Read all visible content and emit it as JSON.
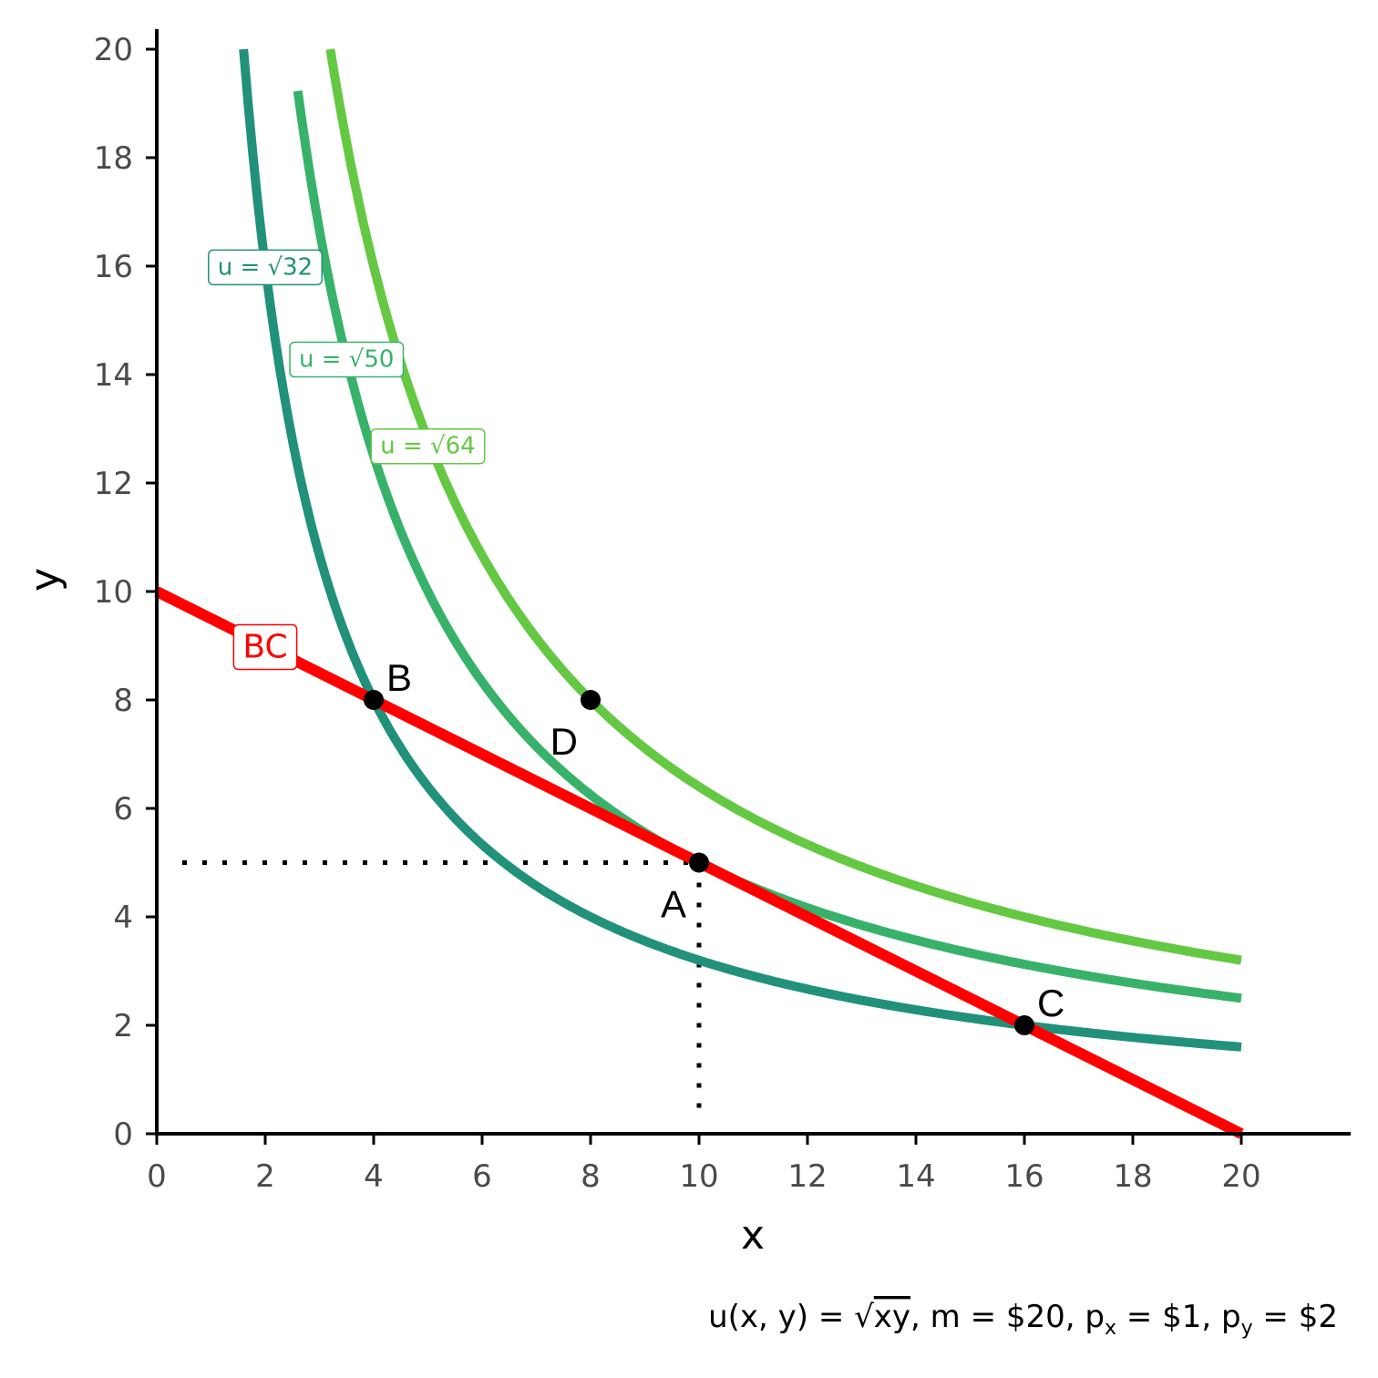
{
  "chart_data": {
    "type": "line",
    "xlabel": "x",
    "ylabel": "y",
    "xlim": [
      0,
      22
    ],
    "ylim": [
      0,
      22
    ],
    "x_ticks": [
      0,
      2,
      4,
      6,
      8,
      10,
      12,
      14,
      16,
      18,
      20
    ],
    "y_ticks": [
      0,
      2,
      4,
      6,
      8,
      10,
      12,
      14,
      16,
      18,
      20
    ],
    "grid": false,
    "budget_line": {
      "label": "BC",
      "color": "#ff0000",
      "x": [
        0,
        20
      ],
      "y": [
        10,
        0
      ]
    },
    "indifference_curves": [
      {
        "label": "u = √32",
        "u_squared": 32,
        "color": "#21917a",
        "x_range": [
          1.6,
          20
        ],
        "label_at": [
          2.0,
          16.0
        ]
      },
      {
        "label": "u = √50",
        "u_squared": 50,
        "color": "#38b26a",
        "x_range": [
          2.6,
          20
        ],
        "label_at": [
          3.5,
          14.3
        ]
      },
      {
        "label": "u = √64",
        "u_squared": 64,
        "color": "#64c843",
        "x_range": [
          3.2,
          20
        ],
        "label_at": [
          5.0,
          12.7
        ]
      }
    ],
    "points": [
      {
        "label": "A",
        "x": 10,
        "y": 5,
        "label_pos": "below-left"
      },
      {
        "label": "B",
        "x": 4,
        "y": 8,
        "label_pos": "above-right"
      },
      {
        "label": "C",
        "x": 16,
        "y": 2,
        "label_pos": "above-right"
      },
      {
        "label": "D",
        "x": 8,
        "y": 8,
        "label_pos": "below-left"
      }
    ],
    "reference_lines": {
      "x": 10,
      "y": 5,
      "style": "dotted"
    }
  },
  "caption": {
    "u_func": "u(x, y) = ",
    "radicand": "xy",
    "m_part": ", m = $20, p",
    "px_sub": "x",
    "px_value": " = $1, p",
    "py_sub": "y",
    "py_value": " = $2"
  }
}
